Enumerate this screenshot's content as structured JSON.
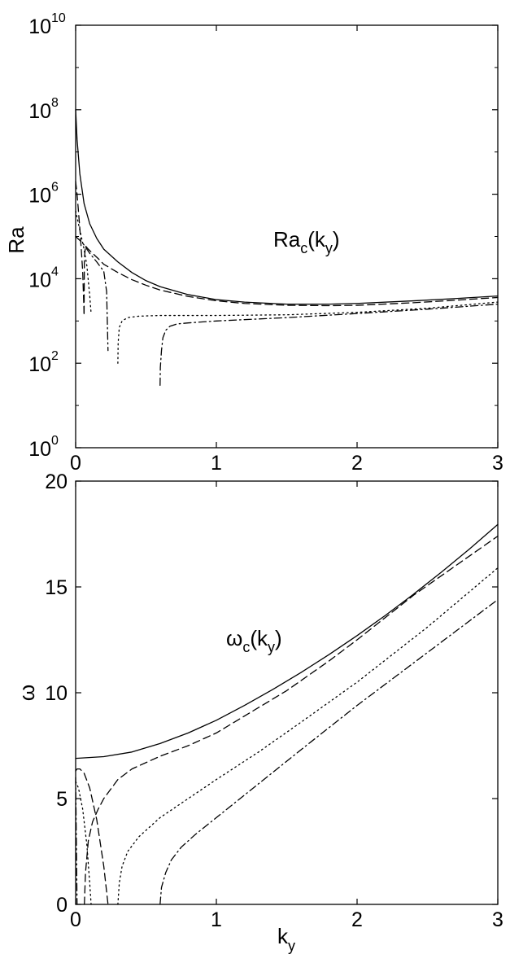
{
  "chart_data": [
    {
      "type": "line",
      "panel": "top",
      "ylabel": "Ra",
      "xlim": [
        0,
        3
      ],
      "ylim": [
        1,
        10000000000
      ],
      "yscale": "log",
      "xticks": [
        "0",
        "1",
        "2",
        "3"
      ],
      "yticks": [
        {
          "base": "10",
          "exp": "0"
        },
        {
          "base": "10",
          "exp": "2"
        },
        {
          "base": "10",
          "exp": "4"
        },
        {
          "base": "10",
          "exp": "6"
        },
        {
          "base": "10",
          "exp": "8"
        },
        {
          "base": "10",
          "exp": "10"
        }
      ],
      "annotation": {
        "main": "Ra",
        "sub1": "c",
        "mid": "(k",
        "sub2": "y",
        "end": ")"
      },
      "series": [
        {
          "style": "solid",
          "x": [
            0.0,
            0.01,
            0.03,
            0.06,
            0.1,
            0.15,
            0.2,
            0.3,
            0.4,
            0.5,
            0.6,
            0.8,
            1.0,
            1.2,
            1.5,
            1.8,
            2.0,
            2.4,
            2.7,
            3.0
          ],
          "y": [
            100000000,
            20000000,
            3000000,
            600000,
            200000,
            90000,
            50000,
            25000,
            14000,
            9000,
            6500,
            4200,
            3200,
            2800,
            2500,
            2500,
            2600,
            3000,
            3400,
            3900
          ]
        },
        {
          "style": "dashed",
          "x": [
            0.06,
            0.062,
            0.07,
            0.09,
            0.12,
            0.16,
            0.2,
            0.3,
            0.4,
            0.5,
            0.6,
            0.8,
            1.0,
            1.2,
            1.5,
            1.8,
            2.0,
            2.4,
            2.7,
            3.0
          ],
          "y": [
            1500,
            30000,
            60000,
            50000,
            40000,
            30000,
            22000,
            14000,
            9500,
            7000,
            5400,
            3800,
            3000,
            2600,
            2350,
            2300,
            2350,
            2700,
            3100,
            3600
          ]
        },
        {
          "style": "dashed",
          "x": [
            0.0,
            0.01,
            0.02,
            0.03,
            0.04,
            0.05,
            0.06
          ],
          "y": [
            2000000,
            1000000,
            400000,
            150000,
            50000,
            15000,
            1500
          ]
        },
        {
          "style": "dotted",
          "x": [
            0.3,
            0.302,
            0.31,
            0.33,
            0.37,
            0.45,
            0.6,
            0.8,
            1.0,
            1.5,
            2.0,
            2.5,
            3.0
          ],
          "y": [
            100,
            300,
            700,
            1000,
            1200,
            1300,
            1350,
            1350,
            1350,
            1400,
            1600,
            2000,
            2800
          ]
        },
        {
          "style": "dotted",
          "x": [
            0.0,
            0.02,
            0.04,
            0.06,
            0.08,
            0.1,
            0.11
          ],
          "y": [
            400000,
            200000,
            100000,
            50000,
            20000,
            4000,
            1500
          ]
        },
        {
          "style": "dashdot",
          "x": [
            0.6,
            0.602,
            0.61,
            0.62,
            0.64,
            0.67,
            0.72,
            0.8,
            1.0,
            1.5,
            2.0,
            2.5,
            3.0
          ],
          "y": [
            30,
            80,
            200,
            400,
            600,
            750,
            850,
            900,
            1000,
            1200,
            1500,
            1900,
            2500
          ]
        },
        {
          "style": "dashdot",
          "x": [
            0.0,
            0.05,
            0.1,
            0.15,
            0.2,
            0.22,
            0.23
          ],
          "y": [
            100000,
            70000,
            40000,
            25000,
            15000,
            5000,
            200
          ]
        }
      ]
    },
    {
      "type": "line",
      "panel": "bottom",
      "xlabel": {
        "main": "k",
        "sub": "y"
      },
      "ylabel": "ω",
      "xlim": [
        0,
        3
      ],
      "ylim": [
        0,
        20
      ],
      "xticks": [
        "0",
        "1",
        "2",
        "3"
      ],
      "yticks": [
        "0",
        "5",
        "10",
        "15",
        "20"
      ],
      "annotation": {
        "main": "ω",
        "sub1": "c",
        "mid": "(k",
        "sub2": "y",
        "end": ")"
      },
      "series": [
        {
          "style": "solid",
          "x": [
            0.0,
            0.2,
            0.4,
            0.6,
            0.8,
            1.0,
            1.2,
            1.4,
            1.6,
            1.8,
            2.0,
            2.2,
            2.4,
            2.6,
            2.8,
            3.0
          ],
          "y": [
            6.9,
            6.98,
            7.2,
            7.6,
            8.1,
            8.7,
            9.4,
            10.15,
            10.95,
            11.8,
            12.7,
            13.65,
            14.65,
            15.7,
            16.8,
            17.95
          ]
        },
        {
          "style": "dashed",
          "x": [
            0.062,
            0.07,
            0.09,
            0.12,
            0.16,
            0.2,
            0.3,
            0.4,
            0.6,
            0.8,
            1.0,
            1.2,
            1.5,
            1.8,
            2.0,
            2.4,
            2.7,
            3.0
          ],
          "y": [
            0,
            1.5,
            3.0,
            3.9,
            4.5,
            5.0,
            5.9,
            6.4,
            7.0,
            7.5,
            8.1,
            8.9,
            10.1,
            11.5,
            12.5,
            14.6,
            16.0,
            17.4
          ]
        },
        {
          "style": "dashed",
          "x": [
            0.0,
            0.01,
            0.03,
            0.06,
            0.1,
            0.15,
            0.2,
            0.23
          ],
          "y": [
            6.3,
            6.4,
            6.4,
            6.2,
            5.5,
            4.0,
            1.8,
            0
          ]
        },
        {
          "style": "dotted",
          "x": [
            0.3,
            0.31,
            0.33,
            0.37,
            0.45,
            0.6,
            0.8,
            1.0,
            1.3,
            1.6,
            2.0,
            2.5,
            3.0
          ],
          "y": [
            0,
            1.0,
            1.8,
            2.5,
            3.2,
            4.1,
            5.0,
            5.9,
            7.2,
            8.6,
            10.5,
            13.1,
            15.9
          ]
        },
        {
          "style": "dotted",
          "x": [
            0.0,
            0.02,
            0.05,
            0.08,
            0.1,
            0.11
          ],
          "y": [
            5.8,
            5.5,
            4.5,
            2.8,
            1.0,
            0
          ]
        },
        {
          "style": "dashdot",
          "x": [
            0.6,
            0.61,
            0.64,
            0.68,
            0.75,
            0.85,
            1.0,
            1.3,
            1.6,
            2.0,
            2.5,
            3.0
          ],
          "y": [
            0,
            0.8,
            1.5,
            2.1,
            2.7,
            3.3,
            4.1,
            5.7,
            7.3,
            9.4,
            11.9,
            14.4
          ]
        },
        {
          "style": "dashdot",
          "x": [
            0.0,
            0.01
          ],
          "y": [
            6.0,
            0
          ]
        }
      ]
    }
  ]
}
